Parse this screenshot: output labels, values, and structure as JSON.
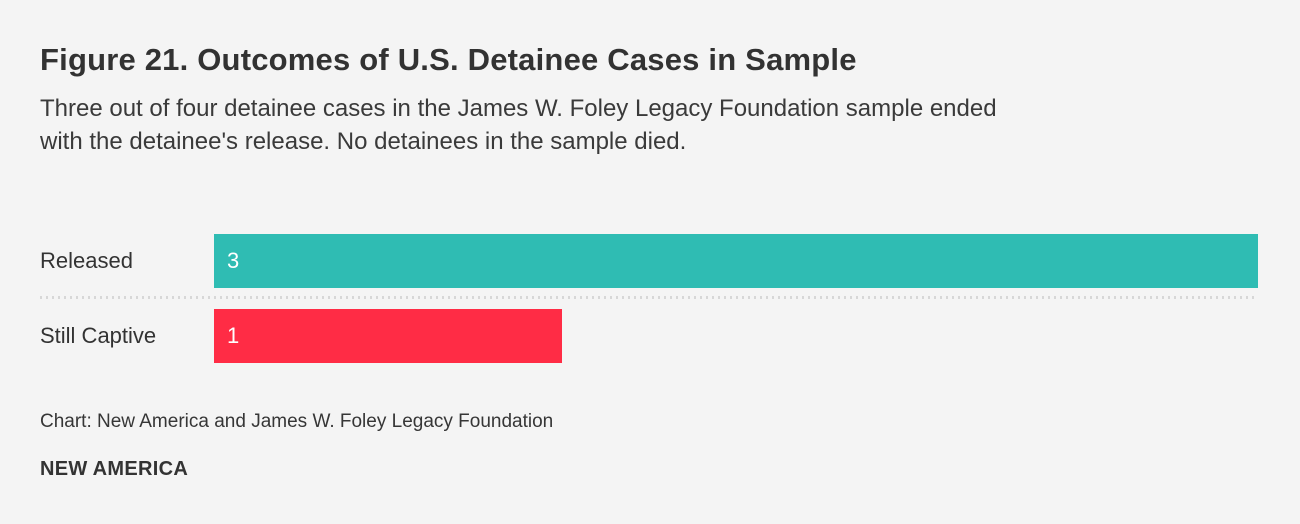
{
  "style": {
    "background": "#f4f4f4",
    "text_color": "#333333",
    "separator_color": "#d7d7d7",
    "value_label_color": "#ffffff"
  },
  "chart": {
    "title": "Figure 21. Outcomes of U.S. Detainee Cases in Sample",
    "subtitle": "Three out of four detainee cases in the James W. Foley Legacy Foundation sample ended with the detainee's release. No detainees in the sample died.",
    "subtitle_lines": [
      "Three out of four detainee cases in the James W. Foley Legacy Foundation sample ended",
      "with the detainee's release. No detainees in the sample died."
    ],
    "credit": "Chart: New America and James W. Foley Legacy Foundation",
    "brand": "NEW AMERICA"
  },
  "chart_data": {
    "type": "bar",
    "orientation": "horizontal",
    "title": "Figure 21. Outcomes of U.S. Detainee Cases in Sample",
    "categories": [
      "Released",
      "Still Captive"
    ],
    "values": [
      3,
      1
    ],
    "colors": [
      "#2fbcb3",
      "#ff2c45"
    ],
    "value_labels": [
      "3",
      "1"
    ],
    "value_label_position": "inside-left",
    "xlabel": "",
    "ylabel": "",
    "xlim": [
      0,
      3
    ],
    "grid": false,
    "legend": false,
    "axis_ticks_visible": false
  }
}
